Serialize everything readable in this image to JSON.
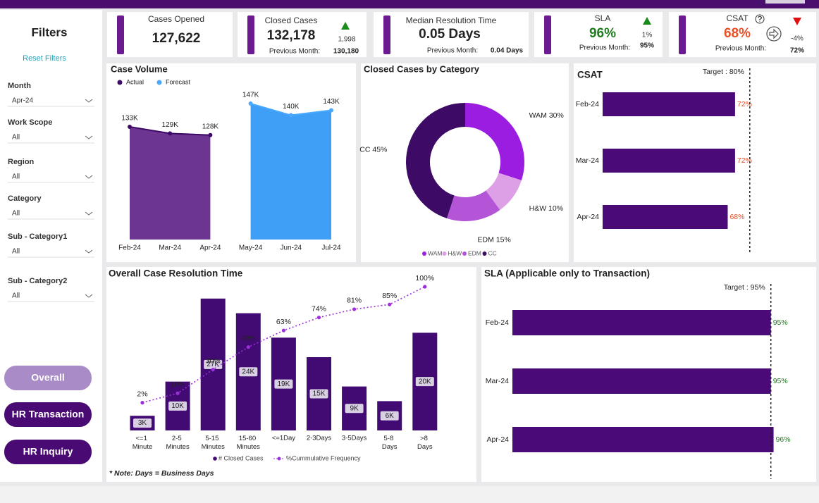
{
  "filters": {
    "title": "Filters",
    "reset": "Reset Filters",
    "fields": [
      {
        "label": "Month",
        "value": "Apr-24"
      },
      {
        "label": "Work Scope",
        "value": "All"
      },
      {
        "label": "Region",
        "value": "All"
      },
      {
        "label": "Category",
        "value": "All"
      },
      {
        "label": "Sub - Category1",
        "value": "All"
      },
      {
        "label": "Sub - Category2",
        "value": "All"
      }
    ],
    "buttons": [
      "Overall",
      "HR Transaction",
      "HR Inquiry"
    ]
  },
  "kpis": [
    {
      "title": "Cases Opened",
      "value": "127,622",
      "color": "#222222"
    },
    {
      "title": "Closed Cases",
      "value": "132,178",
      "color": "#222222",
      "change": "1,998",
      "trend": "up",
      "prev_label": "Previous Month:",
      "prev": "130,180"
    },
    {
      "title": "Median Resolution Time",
      "value": "0.05 Days",
      "color": "#222222",
      "prev_label": "Previous Month:",
      "prev": "0.04 Days"
    },
    {
      "title": "SLA",
      "value": "96%",
      "color": "#1e7b1e",
      "change": "1%",
      "trend": "up",
      "prev_label": "Previous Month:",
      "prev": "95%"
    },
    {
      "title": "CSAT",
      "value": "68%",
      "color": "#e8502a",
      "change": "-4%",
      "trend": "down",
      "prev_label": "Previous Month:",
      "prev": "72%"
    }
  ],
  "chart_data": [
    {
      "type": "area",
      "title": "Case Volume",
      "categories": [
        "Feb-24",
        "Mar-24",
        "Apr-24",
        "May-24",
        "Jun-24",
        "Jul-24"
      ],
      "series": [
        {
          "name": "Actual",
          "color": "#6c3591",
          "line_color": "#3d0a66",
          "values": [
            133000,
            129000,
            128000,
            null,
            null,
            null
          ],
          "value_labels": [
            "133K",
            "129K",
            "128K",
            null,
            null,
            null
          ]
        },
        {
          "name": "Forecast",
          "color": "#3f9ef5",
          "line_color": "#4aa8ff",
          "values": [
            null,
            null,
            null,
            147000,
            140000,
            143000
          ],
          "value_labels": [
            null,
            null,
            null,
            "147K",
            "140K",
            "143K"
          ]
        }
      ],
      "ylim": [
        65000,
        150000
      ]
    },
    {
      "type": "donut",
      "title": "Closed Cases by Category",
      "categories": [
        "WAM",
        "H&W",
        "EDM",
        "CC"
      ],
      "values": [
        30,
        10,
        15,
        45
      ],
      "value_labels": [
        "30%",
        "10%",
        "15%",
        "45%"
      ],
      "colors": [
        "#9b1de0",
        "#dda0e6",
        "#b455d8",
        "#3d0a66"
      ]
    },
    {
      "type": "hbar",
      "title": "CSAT",
      "categories": [
        "Feb-24",
        "Mar-24",
        "Apr-24"
      ],
      "values": [
        72,
        72,
        68
      ],
      "value_labels": [
        "72%",
        "72%",
        "68%"
      ],
      "color": "#4a0a78",
      "label_color": "#e8502a",
      "xlim": [
        0,
        100
      ],
      "target": {
        "value": 80,
        "label": "Target : 80%"
      }
    },
    {
      "type": "combo",
      "title": "Overall Case Resolution Time",
      "categories": [
        "<=1 Minute",
        "2-5 Minutes",
        "5-15 Minutes",
        "15-60 Minutes",
        "<=1Day",
        "2-3Days",
        "3-5Days",
        "5-8 Days",
        ">8 Days"
      ],
      "series": [
        {
          "name": "# Closed Cases",
          "type": "bar",
          "color": "#420a73",
          "values": [
            3000,
            10000,
            27000,
            24000,
            19000,
            15000,
            9000,
            6000,
            20000
          ],
          "value_labels": [
            "3K",
            "10K",
            "27K",
            "24K",
            "19K",
            "15K",
            "9K",
            "6K",
            "20K"
          ]
        },
        {
          "name": "%Cummulative Frequency",
          "type": "line",
          "axis": "y2",
          "color": "#9b30d9",
          "values": [
            2,
            10,
            30,
            49,
            63,
            74,
            81,
            85,
            100
          ],
          "value_labels": [
            "2%",
            "10%",
            "30%",
            "49%",
            "63%",
            "74%",
            "81%",
            "85%",
            "100%"
          ]
        }
      ],
      "ylim": [
        0,
        30000
      ],
      "y2lim": [
        0,
        100
      ],
      "note": "* Note: Days = Business Days"
    },
    {
      "type": "hbar",
      "title": "SLA (Applicable only to Transaction)",
      "categories": [
        "Feb-24",
        "Mar-24",
        "Apr-24"
      ],
      "values": [
        95,
        95,
        96
      ],
      "value_labels": [
        "95%",
        "95%",
        "96%"
      ],
      "color": "#4a0a78",
      "label_color": "#1e7b1e",
      "xlim": [
        0,
        100
      ],
      "target": {
        "value": 95,
        "label": "Target : 95%"
      }
    }
  ]
}
